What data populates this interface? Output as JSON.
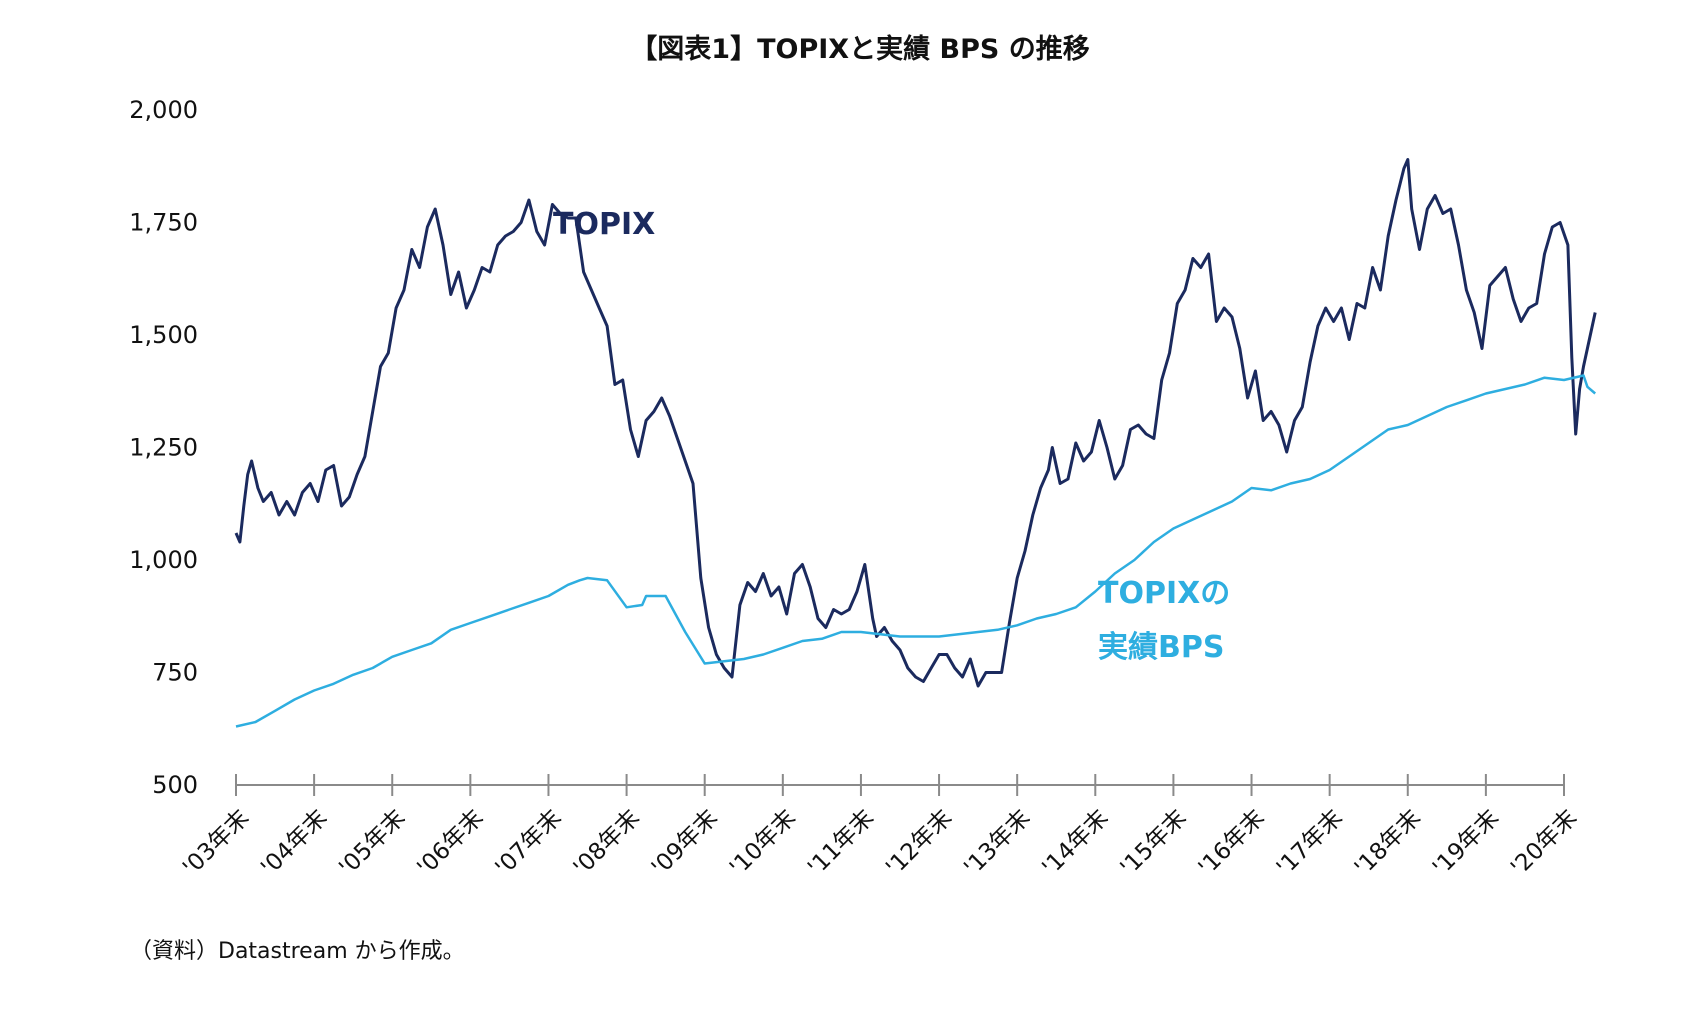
{
  "chart_data": {
    "type": "line",
    "title": "【図表1】TOPIXと実績 BPS の推移",
    "source": "（資料）Datastream から作成。",
    "ylim": [
      500,
      2000
    ],
    "yticks": [
      "2,000",
      "1,750",
      "1,500",
      "1,250",
      "1,000",
      "750",
      "500"
    ],
    "ytick_values": [
      2000,
      1750,
      1500,
      1250,
      1000,
      750,
      500
    ],
    "x_categories": [
      "'03年末",
      "'04年末",
      "'05年末",
      "'06年末",
      "'07年末",
      "'08年末",
      "'09年末",
      "'10年末",
      "'11年末",
      "'12年末",
      "'13年末",
      "'14年末",
      "'15年末",
      "'16年末",
      "'17年末",
      "'18年末",
      "'19年末",
      "'20年末"
    ],
    "xlim": [
      2003,
      2020
    ],
    "series": [
      {
        "name": "TOPIX",
        "label_lines": [
          "TOPIX"
        ],
        "color": "#1b2a5e",
        "x": [
          2003.0,
          2003.05,
          2003.1,
          2003.15,
          2003.2,
          2003.28,
          2003.35,
          2003.45,
          2003.55,
          2003.65,
          2003.75,
          2003.85,
          2003.95,
          2004.05,
          2004.15,
          2004.25,
          2004.35,
          2004.45,
          2004.55,
          2004.65,
          2004.75,
          2004.85,
          2004.95,
          2005.05,
          2005.15,
          2005.25,
          2005.35,
          2005.45,
          2005.55,
          2005.65,
          2005.75,
          2005.85,
          2005.95,
          2006.05,
          2006.15,
          2006.25,
          2006.35,
          2006.45,
          2006.55,
          2006.65,
          2006.75,
          2006.85,
          2006.95,
          2007.05,
          2007.15,
          2007.25,
          2007.35,
          2007.45,
          2007.55,
          2007.65,
          2007.75,
          2007.85,
          2007.95,
          2008.05,
          2008.15,
          2008.25,
          2008.35,
          2008.45,
          2008.55,
          2008.65,
          2008.75,
          2008.85,
          2008.95,
          2009.05,
          2009.15,
          2009.25,
          2009.35,
          2009.45,
          2009.55,
          2009.65,
          2009.75,
          2009.85,
          2009.95,
          2010.05,
          2010.15,
          2010.25,
          2010.35,
          2010.45,
          2010.55,
          2010.65,
          2010.75,
          2010.85,
          2010.95,
          2011.05,
          2011.15,
          2011.2,
          2011.3,
          2011.4,
          2011.5,
          2011.6,
          2011.7,
          2011.8,
          2011.9,
          2012.0,
          2012.1,
          2012.2,
          2012.3,
          2012.4,
          2012.5,
          2012.6,
          2012.7,
          2012.8,
          2012.9,
          2013.0,
          2013.1,
          2013.2,
          2013.3,
          2013.4,
          2013.45,
          2013.55,
          2013.65,
          2013.75,
          2013.85,
          2013.95,
          2014.05,
          2014.15,
          2014.25,
          2014.35,
          2014.45,
          2014.55,
          2014.65,
          2014.75,
          2014.85,
          2014.95,
          2015.05,
          2015.15,
          2015.25,
          2015.35,
          2015.45,
          2015.55,
          2015.65,
          2015.75,
          2015.85,
          2015.95,
          2016.05,
          2016.15,
          2016.25,
          2016.35,
          2016.45,
          2016.55,
          2016.65,
          2016.75,
          2016.85,
          2016.95,
          2017.05,
          2017.15,
          2017.25,
          2017.35,
          2017.45,
          2017.55,
          2017.65,
          2017.75,
          2017.85,
          2017.95,
          2018.0,
          2018.05,
          2018.15,
          2018.25,
          2018.35,
          2018.45,
          2018.55,
          2018.65,
          2018.75,
          2018.85,
          2018.95,
          2019.05,
          2019.15,
          2019.25,
          2019.35,
          2019.45,
          2019.55,
          2019.65,
          2019.75,
          2019.85,
          2019.95,
          2020.05,
          2020.1,
          2020.15,
          2020.2,
          2020.25,
          2020.3,
          2020.35,
          2020.4
        ],
        "values": [
          1060,
          1040,
          1120,
          1190,
          1220,
          1160,
          1130,
          1150,
          1100,
          1130,
          1100,
          1150,
          1170,
          1130,
          1200,
          1210,
          1120,
          1140,
          1190,
          1230,
          1330,
          1430,
          1460,
          1560,
          1600,
          1690,
          1650,
          1740,
          1780,
          1700,
          1590,
          1640,
          1560,
          1600,
          1650,
          1640,
          1700,
          1720,
          1730,
          1750,
          1800,
          1730,
          1700,
          1790,
          1770,
          1760,
          1760,
          1640,
          1600,
          1560,
          1520,
          1390,
          1400,
          1290,
          1230,
          1310,
          1330,
          1360,
          1320,
          1270,
          1220,
          1170,
          960,
          850,
          790,
          760,
          740,
          900,
          950,
          930,
          970,
          920,
          940,
          880,
          970,
          990,
          940,
          870,
          850,
          890,
          880,
          890,
          930,
          990,
          870,
          830,
          850,
          820,
          800,
          760,
          740,
          730,
          760,
          790,
          790,
          760,
          740,
          780,
          720,
          750,
          750,
          750,
          860,
          960,
          1020,
          1100,
          1160,
          1200,
          1250,
          1170,
          1180,
          1260,
          1220,
          1240,
          1310,
          1250,
          1180,
          1210,
          1290,
          1300,
          1280,
          1270,
          1400,
          1460,
          1570,
          1600,
          1670,
          1650,
          1680,
          1530,
          1560,
          1540,
          1470,
          1360,
          1420,
          1310,
          1330,
          1300,
          1240,
          1310,
          1340,
          1440,
          1520,
          1560,
          1530,
          1560,
          1490,
          1570,
          1560,
          1650,
          1600,
          1720,
          1800,
          1870,
          1890,
          1780,
          1690,
          1780,
          1810,
          1770,
          1780,
          1700,
          1600,
          1550,
          1470,
          1610,
          1630,
          1650,
          1580,
          1530,
          1560,
          1570,
          1680,
          1740,
          1750,
          1700,
          1450,
          1280,
          1380,
          1430,
          1470,
          1510,
          1550
        ]
      },
      {
        "name": "TOPIXの実績BPS",
        "label_lines": [
          "TOPIXの",
          "実績BPS"
        ],
        "color": "#2eaee0",
        "x": [
          2003.0,
          2003.25,
          2003.5,
          2003.75,
          2004.0,
          2004.25,
          2004.5,
          2004.75,
          2005.0,
          2005.25,
          2005.5,
          2005.75,
          2006.0,
          2006.25,
          2006.5,
          2006.75,
          2007.0,
          2007.25,
          2007.4,
          2007.5,
          2007.75,
          2008.0,
          2008.2,
          2008.25,
          2008.5,
          2008.75,
          2009.0,
          2009.25,
          2009.5,
          2009.75,
          2010.0,
          2010.25,
          2010.5,
          2010.75,
          2011.0,
          2011.25,
          2011.5,
          2011.75,
          2012.0,
          2012.25,
          2012.5,
          2012.75,
          2013.0,
          2013.25,
          2013.5,
          2013.75,
          2014.0,
          2014.25,
          2014.5,
          2014.75,
          2015.0,
          2015.25,
          2015.5,
          2015.75,
          2016.0,
          2016.25,
          2016.5,
          2016.75,
          2017.0,
          2017.25,
          2017.5,
          2017.75,
          2018.0,
          2018.25,
          2018.5,
          2018.75,
          2019.0,
          2019.25,
          2019.5,
          2019.75,
          2020.0,
          2020.25,
          2020.3,
          2020.4
        ],
        "values": [
          630,
          640,
          665,
          690,
          710,
          725,
          745,
          760,
          785,
          800,
          815,
          845,
          860,
          875,
          890,
          905,
          920,
          945,
          955,
          960,
          955,
          895,
          900,
          920,
          920,
          840,
          770,
          775,
          780,
          790,
          805,
          820,
          825,
          840,
          840,
          835,
          830,
          830,
          830,
          835,
          840,
          845,
          855,
          870,
          880,
          895,
          930,
          970,
          1000,
          1040,
          1070,
          1090,
          1110,
          1130,
          1160,
          1155,
          1170,
          1180,
          1200,
          1230,
          1260,
          1290,
          1300,
          1320,
          1340,
          1355,
          1370,
          1380,
          1390,
          1405,
          1400,
          1410,
          1385,
          1370
        ]
      }
    ]
  }
}
